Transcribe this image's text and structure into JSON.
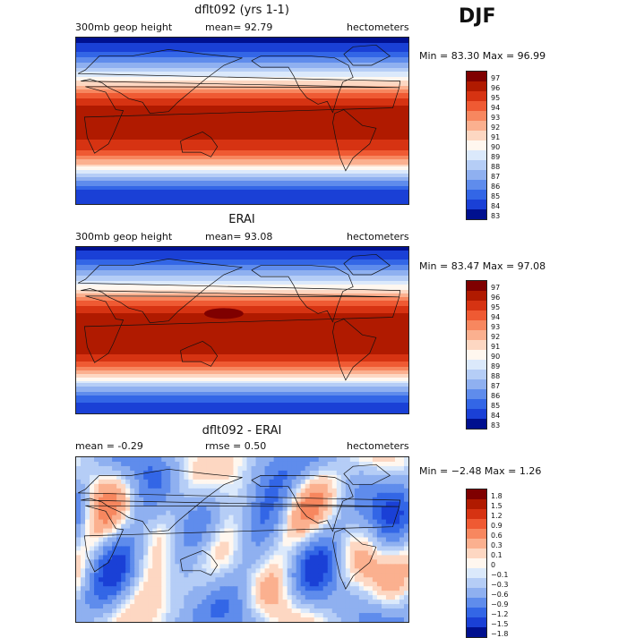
{
  "season": "DJF",
  "panels": [
    {
      "title": "dflt092 (yrs 1-1)",
      "left_label": "300mb geop height",
      "mid_label": "mean=  92.79",
      "right_label": "hectometers",
      "minmax": "Min =  83.30 Max =  96.99",
      "colorbar": {
        "labels": [
          "97",
          "96",
          "95",
          "94",
          "93",
          "92",
          "91",
          "90",
          "89",
          "88",
          "87",
          "86",
          "85",
          "84",
          "83"
        ],
        "colors": [
          "#7f0000",
          "#b01a00",
          "#d63312",
          "#ef5a33",
          "#f7875f",
          "#fbb08f",
          "#fdd7c2",
          "#fff7ef",
          "#dbe9fb",
          "#b5cdf6",
          "#8fb0f0",
          "#5f8cec",
          "#3366e6",
          "#1a40d6",
          "#00108f"
        ]
      }
    },
    {
      "title": "ERAI",
      "left_label": "300mb geop height",
      "mid_label": "mean=  93.08",
      "right_label": "hectometers",
      "minmax": "Min =  83.47 Max =  97.08",
      "colorbar": {
        "labels": [
          "97",
          "96",
          "95",
          "94",
          "93",
          "92",
          "91",
          "90",
          "89",
          "88",
          "87",
          "86",
          "85",
          "84",
          "83"
        ],
        "colors": [
          "#7f0000",
          "#b01a00",
          "#d63312",
          "#ef5a33",
          "#f7875f",
          "#fbb08f",
          "#fdd7c2",
          "#fff7ef",
          "#dbe9fb",
          "#b5cdf6",
          "#8fb0f0",
          "#5f8cec",
          "#3366e6",
          "#1a40d6",
          "#00108f"
        ]
      }
    },
    {
      "title": "dflt092 - ERAI",
      "left_label": "mean =  -0.29",
      "mid_label": "rmse =   0.50",
      "right_label": "hectometers",
      "minmax": "Min = −2.48 Max =   1.26",
      "colorbar": {
        "labels": [
          "1.8",
          "1.5",
          "1.2",
          "0.9",
          "0.6",
          "0.3",
          "0.1",
          "0",
          "−0.1",
          "−0.3",
          "−0.6",
          "−0.9",
          "−1.2",
          "−1.5",
          "−1.8"
        ],
        "colors": [
          "#7f0000",
          "#b01a00",
          "#d63312",
          "#ef5a33",
          "#f7875f",
          "#fbb08f",
          "#fdd7c2",
          "#fff7ef",
          "#dbe9fb",
          "#b5cdf6",
          "#8fb0f0",
          "#5f8cec",
          "#3366e6",
          "#1a40d6",
          "#00108f"
        ]
      }
    }
  ],
  "chart_data": [
    {
      "type": "heatmap",
      "title": "dflt092 (yrs 1-1)",
      "variable": "300mb geop height",
      "units": "hectometers",
      "mean": 92.79,
      "min": 83.3,
      "max": 96.99,
      "levels": [
        83,
        84,
        85,
        86,
        87,
        88,
        89,
        90,
        91,
        92,
        93,
        94,
        95,
        96,
        97
      ],
      "zonal_profile": {
        "lat": [
          90,
          75,
          60,
          45,
          30,
          15,
          0,
          -15,
          -30,
          -45,
          -60,
          -75,
          -90
        ],
        "value": [
          83.5,
          85.0,
          87.5,
          90.5,
          94.0,
          96.3,
          96.5,
          96.3,
          95.5,
          92.5,
          88.0,
          85.0,
          84.0
        ]
      }
    },
    {
      "type": "heatmap",
      "title": "ERAI",
      "variable": "300mb geop height",
      "units": "hectometers",
      "mean": 93.08,
      "min": 83.47,
      "max": 97.08,
      "levels": [
        83,
        84,
        85,
        86,
        87,
        88,
        89,
        90,
        91,
        92,
        93,
        94,
        95,
        96,
        97
      ],
      "zonal_profile": {
        "lat": [
          90,
          75,
          60,
          45,
          30,
          15,
          0,
          -15,
          -30,
          -45,
          -60,
          -75,
          -90
        ],
        "value": [
          83.7,
          85.2,
          87.8,
          90.8,
          94.3,
          96.6,
          96.8,
          96.5,
          95.8,
          92.8,
          88.3,
          85.2,
          84.2
        ]
      }
    },
    {
      "type": "heatmap",
      "title": "dflt092 - ERAI",
      "units": "hectometers",
      "mean": -0.29,
      "rmse": 0.5,
      "min": -2.48,
      "max": 1.26,
      "levels": [
        -1.8,
        -1.5,
        -1.2,
        -0.9,
        -0.6,
        -0.3,
        -0.1,
        0,
        0.1,
        0.3,
        0.6,
        0.9,
        1.2,
        1.5,
        1.8
      ]
    }
  ]
}
